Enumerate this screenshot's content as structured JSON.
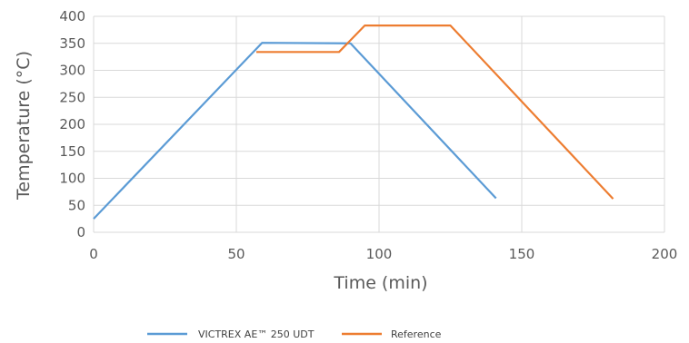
{
  "chart_data": {
    "type": "line",
    "title": "",
    "xlabel": "Time (min)",
    "ylabel": "Temperature (°C)",
    "xlim": [
      0,
      200
    ],
    "ylim": [
      0,
      400
    ],
    "xticks": [
      0,
      50,
      100,
      150,
      200
    ],
    "yticks": [
      0,
      50,
      100,
      150,
      200,
      250,
      300,
      350,
      400
    ],
    "grid": true,
    "legend_position": "bottom",
    "series": [
      {
        "name": "VICTREX AE™ 250 UDT",
        "color": "#5b9bd5",
        "points": [
          [
            0,
            25
          ],
          [
            59,
            351
          ],
          [
            90,
            350
          ],
          [
            141,
            63
          ]
        ]
      },
      {
        "name": "Reference",
        "color": "#ed7d31",
        "points": [
          [
            57,
            334
          ],
          [
            86,
            334
          ],
          [
            95,
            383
          ],
          [
            125,
            383
          ],
          [
            182,
            62
          ]
        ]
      }
    ]
  }
}
